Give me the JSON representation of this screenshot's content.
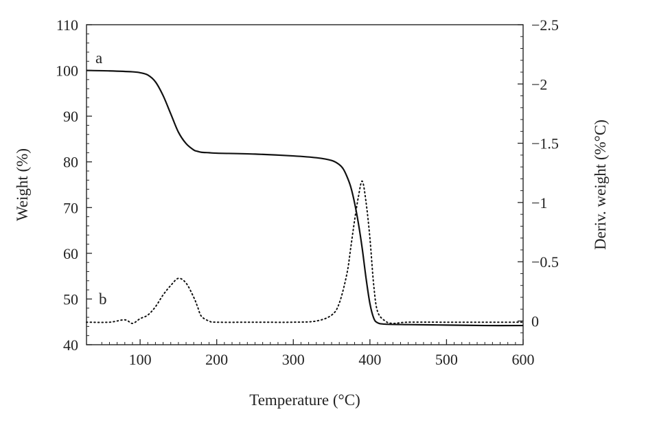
{
  "chart_data": {
    "type": "line",
    "xlabel": "Temperature (°C)",
    "ylabel": "Weight (%)",
    "y2label": "Deriv. weight (%°C)",
    "xlim": [
      30,
      600
    ],
    "ylim": [
      40,
      110
    ],
    "y2lim": [
      0.2,
      -2.5
    ],
    "x_ticks": [
      100,
      200,
      300,
      400,
      500,
      600
    ],
    "x_tick_labels": [
      "100",
      "200",
      "300",
      "400",
      "500",
      "600"
    ],
    "y_ticks": [
      40,
      50,
      60,
      70,
      80,
      90,
      100,
      110
    ],
    "y_tick_labels": [
      "40",
      "50",
      "60",
      "70",
      "80",
      "90",
      "100",
      "110"
    ],
    "y2_ticks": [
      0,
      -0.5,
      -1,
      -1.5,
      -2,
      -2.5
    ],
    "y2_tick_labels": [
      "0",
      "−0.5",
      "−1",
      "−1.5",
      "−2",
      "−2.5"
    ],
    "grid": false,
    "legend": "none",
    "series": [
      {
        "name": "a",
        "axis": "left",
        "style": "solid",
        "color": "#111111",
        "x": [
          30,
          60,
          90,
          100,
          110,
          120,
          130,
          140,
          150,
          160,
          170,
          175,
          180,
          190,
          200,
          250,
          300,
          330,
          350,
          360,
          365,
          370,
          375,
          380,
          385,
          390,
          395,
          400,
          405,
          410,
          420,
          450,
          500,
          550,
          600
        ],
        "y": [
          100,
          99.9,
          99.7,
          99.5,
          99,
          97.5,
          94.5,
          90.5,
          86.5,
          84,
          82.6,
          82.3,
          82.1,
          82,
          81.9,
          81.7,
          81.3,
          80.9,
          80.3,
          79.4,
          78.5,
          76.8,
          74.5,
          71,
          66.5,
          61,
          54.5,
          49,
          45.8,
          44.8,
          44.5,
          44.4,
          44.3,
          44.2,
          44.2
        ]
      },
      {
        "name": "b",
        "axis": "right",
        "style": "dotted",
        "color": "#111111",
        "x": [
          30,
          60,
          80,
          90,
          100,
          110,
          120,
          130,
          140,
          150,
          160,
          170,
          175,
          180,
          190,
          200,
          250,
          300,
          330,
          350,
          360,
          370,
          375,
          380,
          385,
          390,
          395,
          400,
          405,
          410,
          420,
          430,
          450,
          500,
          550,
          600
        ],
        "y": [
          0.01,
          0.01,
          -0.01,
          0.02,
          -0.02,
          -0.05,
          -0.12,
          -0.22,
          -0.3,
          -0.36,
          -0.32,
          -0.2,
          -0.12,
          -0.04,
          0.0,
          0.01,
          0.01,
          0.01,
          0.0,
          -0.05,
          -0.15,
          -0.4,
          -0.62,
          -0.85,
          -1.05,
          -1.18,
          -1.0,
          -0.7,
          -0.3,
          -0.08,
          0.0,
          0.02,
          0.01,
          0.01,
          0.01,
          0.01
        ]
      }
    ]
  }
}
